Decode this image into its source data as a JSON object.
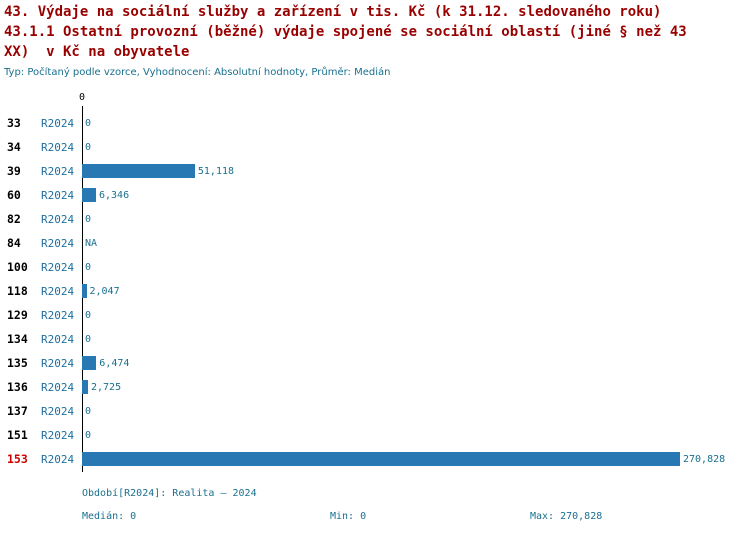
{
  "header": {
    "title_line1": "43. Výdaje na sociální služby a zařízení v tis. Kč (k 31.12. sledovaného roku)",
    "title_line2": "43.1.1 Ostatní provozní (běžné) výdaje spojené se sociální oblastí (jiné § než 43",
    "title_line3": "XX)  v Kč na obyvatele",
    "subtitle": "Typ: Počítaný podle vzorce, Vyhodnocení: Absolutní hodnoty, Průměr: Medián"
  },
  "chart_data": {
    "type": "bar",
    "orientation": "horizontal",
    "title": "43. Výdaje na sociální služby a zařízení v tis. Kč (k 31.12. sledovaného roku) — 43.1.1 Ostatní provozní (běžné) výdaje spojené se sociální oblastí (jiné § než 43 XX) v Kč na obyvatele",
    "axis_origin_label": "0",
    "series_label": "R2024",
    "categories": [
      "33",
      "34",
      "39",
      "60",
      "82",
      "84",
      "100",
      "118",
      "129",
      "134",
      "135",
      "136",
      "137",
      "151",
      "153"
    ],
    "values": [
      0,
      0,
      51118,
      6346,
      0,
      null,
      0,
      2047,
      0,
      0,
      6474,
      2725,
      0,
      0,
      270828
    ],
    "value_labels": [
      "0",
      "0",
      "51,118",
      "6,346",
      "0",
      "NA",
      "0",
      "2,047",
      "0",
      "0",
      "6,474",
      "2,725",
      "0",
      "0",
      "270,828"
    ],
    "highlight_category": "153",
    "xlim": [
      0,
      270828
    ],
    "bar_color": "#2878b4",
    "grid": false,
    "legend_position": "none"
  },
  "footer": {
    "period": "Období[R2024]: Realita – 2024",
    "median": "Medián: 0",
    "min": "Min: 0",
    "max": "Max: 270,828"
  },
  "colors": {
    "title": "#990000",
    "text_teal": "#19708f",
    "series_blue": "#1b6fa0",
    "bar_blue": "#2878b4",
    "highlight_red": "#cc0000"
  }
}
